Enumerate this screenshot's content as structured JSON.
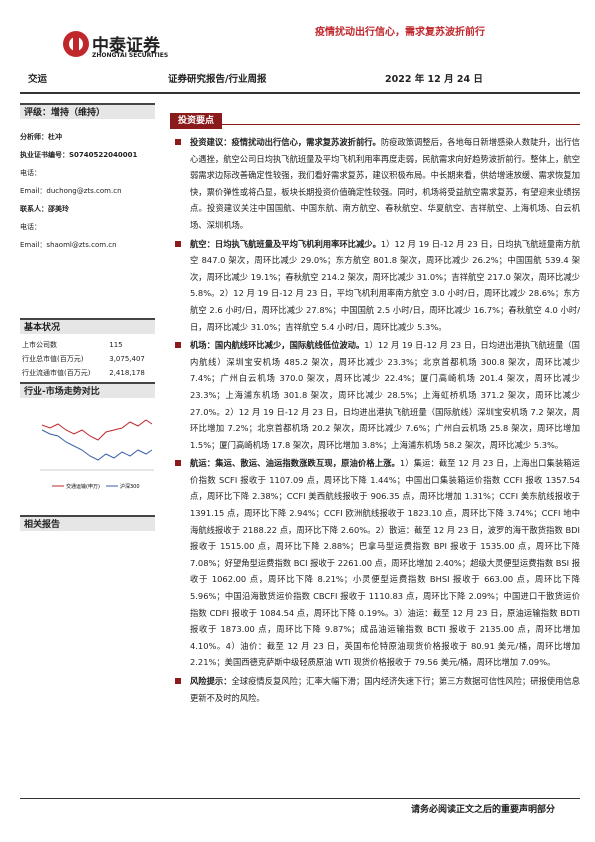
{
  "header": {
    "logo_cn": "中泰证券",
    "logo_en": "ZHONGTAI SECURITIES",
    "title": "疫情扰动出行信心，需求复苏波折前行",
    "industry": "交运",
    "report_type": "证券研究报告/行业周报",
    "date": "2022 年 12 月 24 日"
  },
  "sidebar": {
    "rating": "评级：增持（维持）",
    "contacts": [
      "分析师：杜冲",
      "执业证书编号：S0740522040001",
      "电话：",
      "Email：duchong@zts.com.cn",
      "联系人：邵美玲",
      "电话：",
      "Email：shaoml@zts.com.cn"
    ],
    "basic_title": "基本状况",
    "basic_rows": [
      [
        "上市公司数",
        "115"
      ],
      [
        "行业总市值(百万元)",
        "3,075,407"
      ],
      [
        "行业流通市值(百万元)",
        "2,418,178"
      ]
    ],
    "chart_title": "行业-市场走势对比",
    "chart_legend": [
      "交通运输(申万)",
      "沪深300"
    ],
    "related_title": "相关报告"
  },
  "main": {
    "section_title": "投资要点",
    "bullets": [
      {
        "lead": "投资建议：疫情扰动出行信心，需求复苏波折前行。",
        "text": "防疫政策调整后，各地每日新增感染人数陡升，出行信心遇挫，航空公司日均执飞航班量及平均飞机利用率再度走弱，民航需求向好趋势波折前行。整体上，航空弱需求边际改善确定性较强，我们看好需求复苏，建议积极布局。中长期来看，供给增速放缓、需求恢复加快，票价弹性或将凸显，板块长期投资价值确定性较强。同时，机场将受益航空需求复苏，有望迎来业绩拐点。投资建议关注中国国航、中国东航、南方航空、春秋航空、华夏航空、吉祥航空、上海机场、白云机场、深圳机场。"
      },
      {
        "lead": "航空：日均执飞航班量及平均飞机利用率环比减少。",
        "text": "1）12 月 19 日-12 月 23 日，日均执飞航班量南方航空 847.0 架次，周环比减少 29.0%；东方航空 801.8 架次，周环比减少 26.2%；中国国航 539.4 架次，周环比减少 19.1%；春秋航空 214.2 架次，周环比减少 31.0%；吉祥航空 217.0 架次，周环比减少 5.8%。2）12 月 19 日-12 月 23 日，平均飞机利用率南方航空 3.0 小时/日，周环比减少 28.6%；东方航空 2.6 小时/日，周环比减少 27.8%；中国国航 2.5 小时/日，周环比减少 16.7%；春秋航空 4.0 小时/日，周环比减少 31.0%；吉祥航空 5.4 小时/日，周环比减少 5.3%。"
      },
      {
        "lead": "机场：国内航线环比减少，国际航线低位波动。",
        "text": "1）12 月 19 日-12 月 23 日，日均进出港执飞航班量（国内航线）深圳宝安机场 485.2 架次，周环比减少 23.3%；北京首都机场 300.8 架次，周环比减少 7.4%；广州白云机场 370.0 架次，周环比减少 22.4%；厦门高崎机场 201.4 架次，周环比减少 23.3%；上海浦东机场 301.8 架次，周环比减少 28.5%；上海虹桥机场 371.2 架次，周环比减少 27.0%。2）12 月 19 日-12 月 23 日，日均进出港执飞航班量（国际航线）深圳宝安机场 7.2 架次，周环比增加 7.2%；北京首都机场 20.2 架次，周环比减少 7.6%；广州白云机场 25.8 架次，周环比增加 1.5%；厦门高崎机场 17.8 架次，周环比增加 3.8%；上海浦东机场 58.2 架次，周环比减少 5.3%。"
      },
      {
        "lead": "航运：集运、散运、油运指数涨跌互现，原油价格上涨。",
        "text": "1）集运：截至 12 月 23 日，上海出口集装箱运价指数 SCFI 报收于 1107.09 点，周环比下降 1.44%；中国出口集装箱运价指数 CCFI 报收 1357.54 点，周环比下降 2.38%；CCFI 美西航线报收于 906.35 点，周环比增加 1.31%；CCFI 美东航线报收于 1391.15 点，周环比下降 2.94%；CCFI 欧洲航线报收于 1823.10 点，周环比下降 3.74%；CCFI 地中海航线报收于 2188.22 点，周环比下降 2.60%。2）散运：截至 12 月 23 日，波罗的海干散货指数 BDI 报收于 1515.00 点，周环比下降 2.88%；巴拿马型运费指数 BPI 报收于 1535.00 点，周环比下降 7.08%；好望角型运费指数 BCI 报收于 2261.00 点，周环比增加 2.40%；超级大灵便型运费指数 BSI 报收于 1062.00 点，周环比下降 8.21%；小灵便型运费指数 BHSI 报收于 663.00 点，周环比下降 5.96%；中国沿海散货运价指数 CBCFI 报收于 1110.83 点，周环比下降 2.09%；中国进口干散货运价指数 CDFI 报收于 1084.54 点，周环比下降 0.19%。3）油运：截至 12 月 23 日，原油运输指数 BDTI 报收于 1873.00 点，周环比下降 9.87%；成品油运输指数 BCTI 报收于 2135.00 点，周环比增加 4.10%。4）油价：截至 12 月 23 日，英国布伦特原油现货价格报收于 80.91 美元/桶，周环比增加 2.21%；美国西德克萨斯中级轻质原油 WTI 现货价格报收于 79.56 美元/桶，周环比增加 7.09%。"
      },
      {
        "lead": "风险提示：",
        "text": "全球疫情反复风险；汇率大幅下滑；国内经济失速下行；第三方数据可信性风险；研报使用信息更新不及时的风险。"
      }
    ]
  },
  "footer": {
    "notice": "请务必阅读正文之后的重要声明部分"
  }
}
